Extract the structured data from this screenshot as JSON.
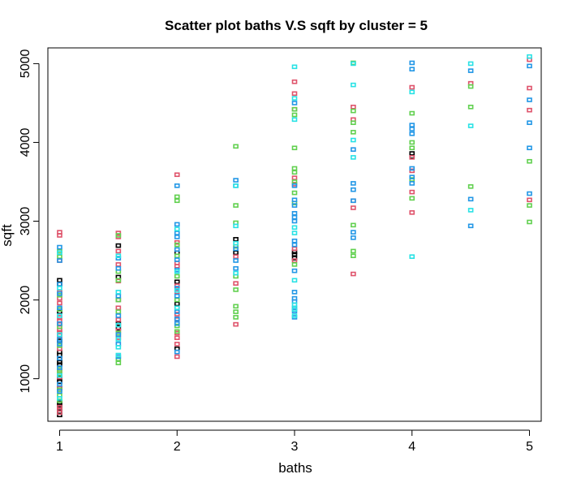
{
  "chart_data": {
    "type": "scatter",
    "title": "Scatter plot baths V.S sqft by cluster = 5",
    "xlabel": "baths",
    "ylabel": "sqft",
    "xlim": [
      0.9,
      5.1
    ],
    "ylim": [
      460,
      5200
    ],
    "x_ticks": [
      1,
      2,
      3,
      4,
      5
    ],
    "y_ticks": [
      1000,
      2000,
      3000,
      4000,
      5000
    ],
    "grid": false,
    "legend": "none",
    "series": [
      {
        "color": "#000000",
        "points": [
          [
            1,
            540
          ],
          [
            1,
            580
          ],
          [
            1,
            620
          ],
          [
            1,
            650
          ],
          [
            1,
            680
          ],
          [
            1,
            700
          ],
          [
            1,
            880
          ],
          [
            1,
            960
          ],
          [
            1,
            1010
          ],
          [
            1,
            1180
          ],
          [
            1,
            1210
          ],
          [
            1,
            1250
          ],
          [
            1,
            1300
          ],
          [
            1,
            1340
          ],
          [
            1,
            1480
          ],
          [
            1,
            1850
          ],
          [
            1,
            2200
          ],
          [
            1,
            2250
          ],
          [
            1.5,
            1640
          ],
          [
            1.5,
            1700
          ],
          [
            1.5,
            2290
          ],
          [
            1.5,
            2690
          ],
          [
            2,
            1380
          ],
          [
            2,
            1950
          ],
          [
            2,
            2230
          ],
          [
            2,
            2600
          ],
          [
            2.5,
            2600
          ],
          [
            2.5,
            2770
          ],
          [
            3,
            2530
          ],
          [
            3,
            2580
          ],
          [
            3,
            2610
          ],
          [
            4,
            3820
          ],
          [
            4,
            3860
          ]
        ]
      },
      {
        "color": "#DF536B",
        "points": [
          [
            1,
            570
          ],
          [
            1,
            610
          ],
          [
            1,
            640
          ],
          [
            1,
            880
          ],
          [
            1,
            1020
          ],
          [
            1,
            1100
          ],
          [
            1,
            1380
          ],
          [
            1,
            1550
          ],
          [
            1,
            1590
          ],
          [
            1,
            1620
          ],
          [
            1,
            1690
          ],
          [
            1,
            1730
          ],
          [
            1,
            1780
          ],
          [
            1,
            1960
          ],
          [
            1,
            2020
          ],
          [
            1,
            2100
          ],
          [
            1,
            2500
          ],
          [
            1,
            2820
          ],
          [
            1,
            2860
          ],
          [
            1.5,
            1520
          ],
          [
            1.5,
            1610
          ],
          [
            1.5,
            1750
          ],
          [
            1.5,
            1900
          ],
          [
            1.5,
            2000
          ],
          [
            1.5,
            2240
          ],
          [
            1.5,
            2450
          ],
          [
            1.5,
            2620
          ],
          [
            1.5,
            2800
          ],
          [
            1.5,
            2850
          ],
          [
            2,
            1280
          ],
          [
            2,
            1440
          ],
          [
            2,
            1520
          ],
          [
            2,
            1580
          ],
          [
            2,
            1750
          ],
          [
            2,
            1820
          ],
          [
            2,
            1900
          ],
          [
            2,
            2100
          ],
          [
            2,
            2180
          ],
          [
            2,
            2430
          ],
          [
            2,
            2470
          ],
          [
            2,
            2730
          ],
          [
            2,
            3590
          ],
          [
            2.5,
            1690
          ],
          [
            2.5,
            2210
          ],
          [
            2.5,
            2550
          ],
          [
            3,
            2500
          ],
          [
            3,
            2650
          ],
          [
            3,
            3470
          ],
          [
            3,
            3550
          ],
          [
            3,
            4420
          ],
          [
            3,
            4620
          ],
          [
            3,
            4770
          ],
          [
            3.5,
            2330
          ],
          [
            3.5,
            3170
          ],
          [
            3.5,
            3260
          ],
          [
            3.5,
            4290
          ],
          [
            3.5,
            4450
          ],
          [
            4,
            3110
          ],
          [
            4,
            3370
          ],
          [
            4,
            3640
          ],
          [
            4,
            3810
          ],
          [
            4,
            4700
          ],
          [
            4.5,
            4750
          ],
          [
            5,
            3270
          ],
          [
            5,
            4410
          ],
          [
            5,
            4690
          ],
          [
            5,
            5050
          ]
        ]
      },
      {
        "color": "#61D04F",
        "points": [
          [
            1,
            720
          ],
          [
            1,
            790
          ],
          [
            1,
            860
          ],
          [
            1,
            1060
          ],
          [
            1,
            1120
          ],
          [
            1,
            1420
          ],
          [
            1,
            1660
          ],
          [
            1,
            1880
          ],
          [
            1,
            2060
          ],
          [
            1,
            2550
          ],
          [
            1,
            2620
          ],
          [
            1.5,
            1200
          ],
          [
            1.5,
            1250
          ],
          [
            1.5,
            1580
          ],
          [
            1.5,
            1850
          ],
          [
            1.5,
            2000
          ],
          [
            1.5,
            2250
          ],
          [
            1.5,
            2360
          ],
          [
            1.5,
            2820
          ],
          [
            2,
            1600
          ],
          [
            2,
            1670
          ],
          [
            2,
            2000
          ],
          [
            2,
            2300
          ],
          [
            2,
            2560
          ],
          [
            2,
            2700
          ],
          [
            2,
            3260
          ],
          [
            2,
            3310
          ],
          [
            2.5,
            1780
          ],
          [
            2.5,
            1850
          ],
          [
            2.5,
            1920
          ],
          [
            2.5,
            2130
          ],
          [
            2.5,
            2300
          ],
          [
            2.5,
            2680
          ],
          [
            2.5,
            2980
          ],
          [
            2.5,
            3200
          ],
          [
            2.5,
            3950
          ],
          [
            3,
            2450
          ],
          [
            3,
            3230
          ],
          [
            3,
            3360
          ],
          [
            3,
            3500
          ],
          [
            3,
            3620
          ],
          [
            3,
            3670
          ],
          [
            3,
            3930
          ],
          [
            3,
            4350
          ],
          [
            3,
            4420
          ],
          [
            3.5,
            2560
          ],
          [
            3.5,
            2620
          ],
          [
            3.5,
            2950
          ],
          [
            3.5,
            4130
          ],
          [
            3.5,
            4250
          ],
          [
            3.5,
            4400
          ],
          [
            3.5,
            5010
          ],
          [
            4,
            3290
          ],
          [
            4,
            3530
          ],
          [
            4,
            3930
          ],
          [
            4,
            4000
          ],
          [
            4,
            4370
          ],
          [
            4.5,
            3440
          ],
          [
            4.5,
            4450
          ],
          [
            4.5,
            4710
          ],
          [
            5,
            2990
          ],
          [
            5,
            3200
          ],
          [
            5,
            3760
          ]
        ]
      },
      {
        "color": "#2297E6",
        "points": [
          [
            1,
            840
          ],
          [
            1,
            930
          ],
          [
            1,
            1140
          ],
          [
            1,
            1260
          ],
          [
            1,
            1440
          ],
          [
            1,
            1500
          ],
          [
            1,
            1700
          ],
          [
            1,
            1900
          ],
          [
            1,
            2080
          ],
          [
            1,
            2200
          ],
          [
            1,
            2500
          ],
          [
            1,
            2670
          ],
          [
            1.5,
            1280
          ],
          [
            1.5,
            1440
          ],
          [
            1.5,
            1560
          ],
          [
            1.5,
            1800
          ],
          [
            1.5,
            2050
          ],
          [
            1.5,
            2400
          ],
          [
            1.5,
            2530
          ],
          [
            2,
            1340
          ],
          [
            2,
            1700
          ],
          [
            2,
            1760
          ],
          [
            2,
            1850
          ],
          [
            2,
            2050
          ],
          [
            2,
            2150
          ],
          [
            2,
            2380
          ],
          [
            2,
            2510
          ],
          [
            2,
            2640
          ],
          [
            2,
            2800
          ],
          [
            2,
            2850
          ],
          [
            2,
            2960
          ],
          [
            2,
            3450
          ],
          [
            2.5,
            2400
          ],
          [
            2.5,
            2500
          ],
          [
            2.5,
            2650
          ],
          [
            2.5,
            3450
          ],
          [
            2.5,
            3520
          ],
          [
            3,
            1780
          ],
          [
            3,
            1860
          ],
          [
            3,
            1900
          ],
          [
            3,
            1980
          ],
          [
            3,
            2020
          ],
          [
            3,
            2100
          ],
          [
            3,
            2370
          ],
          [
            3,
            2700
          ],
          [
            3,
            2750
          ],
          [
            3,
            3000
          ],
          [
            3,
            3050
          ],
          [
            3,
            3100
          ],
          [
            3,
            3200
          ],
          [
            3,
            3270
          ],
          [
            3,
            3450
          ],
          [
            3,
            4500
          ],
          [
            3.5,
            2790
          ],
          [
            3.5,
            2860
          ],
          [
            3.5,
            3260
          ],
          [
            3.5,
            3400
          ],
          [
            3.5,
            3480
          ],
          [
            3.5,
            3910
          ],
          [
            4,
            3480
          ],
          [
            4,
            3560
          ],
          [
            4,
            3670
          ],
          [
            4,
            4110
          ],
          [
            4,
            4170
          ],
          [
            4,
            4220
          ],
          [
            4,
            4930
          ],
          [
            4,
            5010
          ],
          [
            4.5,
            2940
          ],
          [
            4.5,
            3280
          ],
          [
            4.5,
            4910
          ],
          [
            5,
            3350
          ],
          [
            5,
            3930
          ],
          [
            5,
            4250
          ],
          [
            5,
            4540
          ],
          [
            5,
            4970
          ]
        ]
      },
      {
        "color": "#28E2E5",
        "points": [
          [
            1,
            750
          ],
          [
            1,
            1040
          ],
          [
            1,
            1560
          ],
          [
            1,
            1800
          ],
          [
            1,
            2150
          ],
          [
            1,
            2600
          ],
          [
            1.5,
            1300
          ],
          [
            1.5,
            1400
          ],
          [
            1.5,
            1500
          ],
          [
            1.5,
            1680
          ],
          [
            1.5,
            2100
          ],
          [
            1.5,
            2560
          ],
          [
            2,
            1900
          ],
          [
            2,
            2120
          ],
          [
            2,
            2360
          ],
          [
            2,
            2900
          ],
          [
            2.5,
            2340
          ],
          [
            2.5,
            2720
          ],
          [
            2.5,
            2940
          ],
          [
            2.5,
            3450
          ],
          [
            3,
            1800
          ],
          [
            3,
            1880
          ],
          [
            3,
            1940
          ],
          [
            3,
            2250
          ],
          [
            3,
            2850
          ],
          [
            3,
            2920
          ],
          [
            3,
            4290
          ],
          [
            3,
            4560
          ],
          [
            3,
            4960
          ],
          [
            3.5,
            3810
          ],
          [
            3.5,
            4030
          ],
          [
            3.5,
            4730
          ],
          [
            3.5,
            5000
          ],
          [
            4,
            2550
          ],
          [
            4,
            4640
          ],
          [
            4.5,
            3140
          ],
          [
            4.5,
            4210
          ],
          [
            4.5,
            5000
          ],
          [
            5,
            5090
          ]
        ]
      }
    ]
  }
}
